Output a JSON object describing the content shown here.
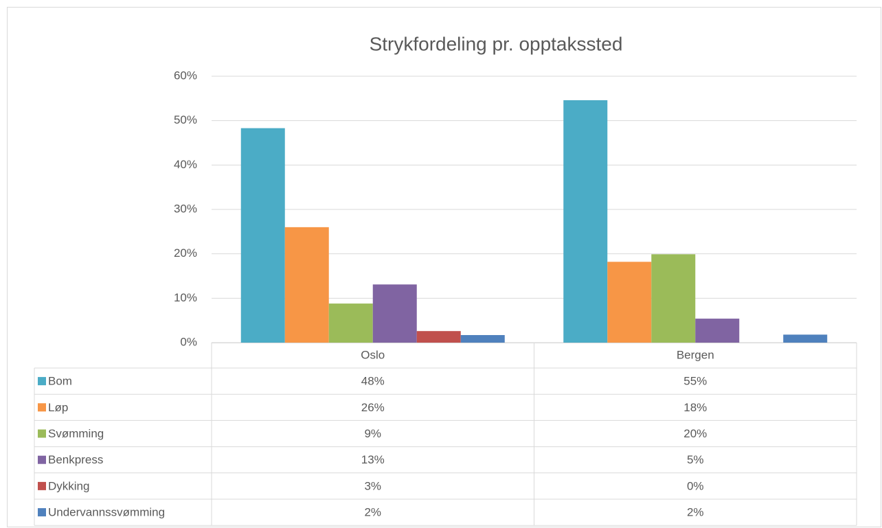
{
  "chart_data": {
    "type": "bar",
    "title": "Strykfordeling pr. opptakssted",
    "categories": [
      "Oslo",
      "Bergen"
    ],
    "series": [
      {
        "name": "Bom",
        "color": "#4bacc6",
        "values": [
          48.3,
          54.6
        ],
        "value_labels": [
          "48%",
          "55%"
        ]
      },
      {
        "name": "Løp",
        "color": "#f79646",
        "values": [
          26.0,
          18.2
        ],
        "value_labels": [
          "26%",
          "18%"
        ]
      },
      {
        "name": "Svømming",
        "color": "#9bbb59",
        "values": [
          8.8,
          19.9
        ],
        "value_labels": [
          "9%",
          "20%"
        ]
      },
      {
        "name": "Benkpress",
        "color": "#8064a2",
        "values": [
          13.1,
          5.4
        ],
        "value_labels": [
          "13%",
          "5%"
        ]
      },
      {
        "name": "Dykking",
        "color": "#c0504d",
        "values": [
          2.6,
          0
        ],
        "value_labels": [
          "3%",
          "0%"
        ]
      },
      {
        "name": "Undervannssvømming",
        "color": "#4f81bd",
        "values": [
          1.7,
          1.8
        ],
        "value_labels": [
          "2%",
          "2%"
        ]
      }
    ],
    "ylim": [
      0,
      60
    ],
    "yticks": [
      {
        "value": 0,
        "label": "0%"
      },
      {
        "value": 10,
        "label": "10%"
      },
      {
        "value": 20,
        "label": "20%"
      },
      {
        "value": 30,
        "label": "30%"
      },
      {
        "value": 40,
        "label": "40%"
      },
      {
        "value": 50,
        "label": "50%"
      },
      {
        "value": 60,
        "label": "60%"
      }
    ],
    "grid": true,
    "legend": "data-table"
  }
}
